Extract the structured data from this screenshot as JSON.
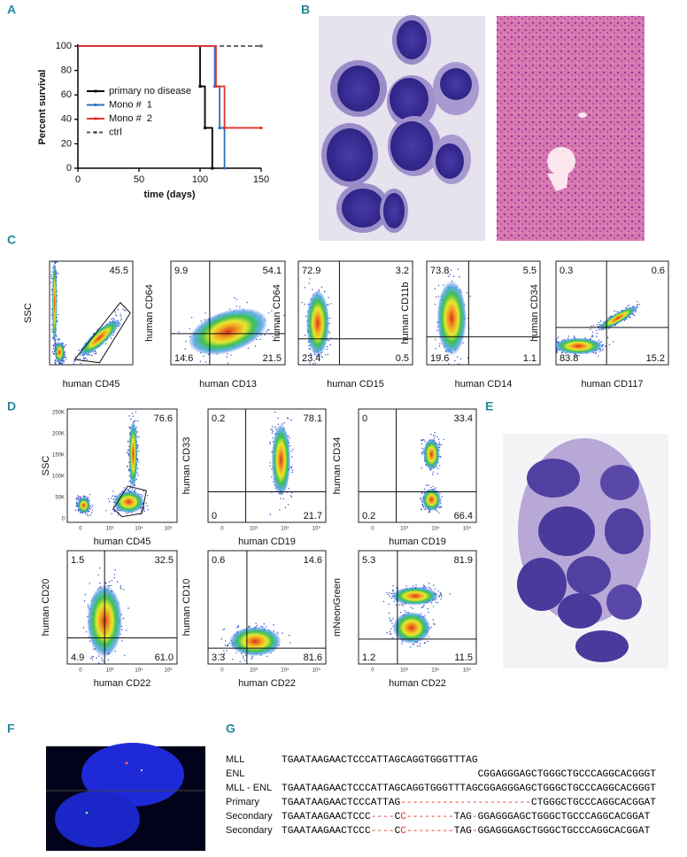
{
  "panel_labels": [
    "A",
    "B",
    "C",
    "D",
    "E",
    "F",
    "G"
  ],
  "chart_data": {
    "type": "line",
    "step": true,
    "y_label": "Percent survival",
    "x_label": "time (days)",
    "xlim": [
      0,
      150
    ],
    "xticks": [
      0,
      50,
      100,
      150
    ],
    "ylim": [
      0,
      100
    ],
    "yticks": [
      0,
      20,
      40,
      60,
      80,
      100
    ],
    "legend": "upper-left",
    "series": [
      {
        "name": "ctrl",
        "color": "#555555",
        "dash": true,
        "x": [
          0,
          150
        ],
        "values": [
          100,
          100
        ]
      },
      {
        "name": "primary no disease",
        "color": "#000000",
        "dash": false,
        "x": [
          0,
          100,
          104,
          110
        ],
        "values": [
          100,
          67,
          33,
          0
        ]
      },
      {
        "name": "Mono #  1",
        "color": "#2f6fc0",
        "dash": false,
        "x": [
          0,
          112,
          116,
          120
        ],
        "values": [
          100,
          67,
          33,
          0
        ]
      },
      {
        "name": "Mono #  2",
        "color": "#e8322a",
        "dash": false,
        "x": [
          0,
          113,
          120,
          150
        ],
        "values": [
          100,
          67,
          33,
          33
        ]
      }
    ]
  },
  "flow_c": {
    "plots": [
      {
        "y_label": "SSC",
        "x_label": "human CD45",
        "values": [
          "45.5"
        ]
      },
      {
        "y_label": "human CD64",
        "x_label": "human CD13",
        "values": [
          "9.9",
          "54.1",
          "14.6",
          "21.5"
        ]
      },
      {
        "y_label": "human CD64",
        "x_label": "human CD15",
        "values": [
          "72.9",
          "3.2",
          "23.4",
          "0.5"
        ]
      },
      {
        "y_label": "human CD11b",
        "x_label": "human CD14",
        "values": [
          "73.8",
          "5.5",
          "19.6",
          "1.1"
        ]
      },
      {
        "y_label": "human CD34",
        "x_label": "human CD117",
        "values": [
          "0.3",
          "0.6",
          "83.8",
          "15.2"
        ]
      }
    ]
  },
  "flow_d": {
    "ssc_ticks": [
      "250K",
      "200K",
      "150K",
      "100K",
      "50K",
      "0"
    ],
    "log_ticks": [
      "0",
      "10³",
      "10⁴",
      "10⁵"
    ],
    "plots": [
      {
        "y_label": "SSC",
        "x_label": "human CD45",
        "values": [
          "76.6"
        ]
      },
      {
        "y_label": "human CD33",
        "x_label": "human CD19",
        "values": [
          "0.2",
          "78.1",
          "0",
          "21.7"
        ]
      },
      {
        "y_label": "human CD34",
        "x_label": "human CD19",
        "values": [
          "0",
          "33.4",
          "0.2",
          "66.4"
        ]
      },
      {
        "y_label": "human CD20",
        "x_label": "human CD22",
        "values": [
          "1.5",
          "32.5",
          "4.9",
          "61.0"
        ]
      },
      {
        "y_label": "human CD10",
        "x_label": "human CD22",
        "values": [
          "0.6",
          "14.6",
          "3.3",
          "81.6"
        ]
      },
      {
        "y_label": "mNeonGreen",
        "x_label": "human CD22",
        "values": [
          "5.3",
          "81.9",
          "1.2",
          "11.5"
        ]
      }
    ]
  },
  "alignment": {
    "rows": [
      {
        "label": "MLL",
        "segments": [
          {
            "text": "TGAATAAGAACTCCCATTAGCAGGTGGGTTTAG",
            "color": "#000000"
          }
        ]
      },
      {
        "label": "ENL",
        "segments": [
          {
            "text": "CGGAGGGAGCTGGGCTGCCCAGGCACGGGT",
            "color": "#000000"
          }
        ]
      },
      {
        "label": "MLL - ENL",
        "segments": [
          {
            "text": "TGAATAAGAACTCCCATTAGCAGGTGGGTTTAGCGGAGGGAGCTGGGCTGCCCAGGCACGGGT",
            "color": "#000000"
          }
        ]
      },
      {
        "label": "Primary",
        "segments": [
          {
            "text": "TGAATAAGAACTCCCATTAG",
            "color": "#000000"
          },
          {
            "text": "----------------------",
            "color": "#e8322a"
          },
          {
            "text": "CTGGGCTGCCCAGGCACGGAT",
            "color": "#000000"
          }
        ]
      },
      {
        "label": "Secondary",
        "segments": [
          {
            "text": "TGAATAAGAACTCCC",
            "color": "#000000"
          },
          {
            "text": "----",
            "color": "#e8322a"
          },
          {
            "text": "C",
            "color": "#000000"
          },
          {
            "text": "C--------",
            "color": "#e8322a"
          },
          {
            "text": "TAG",
            "color": "#000000"
          },
          {
            "text": "-",
            "color": "#e8322a"
          },
          {
            "text": "GGAGGGAGCTGGGCTGCCCAGGCACGGAT",
            "color": "#000000"
          }
        ]
      },
      {
        "label": "Secondary",
        "segments": [
          {
            "text": "TGAATAAGAACTCCC",
            "color": "#000000"
          },
          {
            "text": "----",
            "color": "#e8322a"
          },
          {
            "text": "C",
            "color": "#000000"
          },
          {
            "text": "C--------",
            "color": "#e8322a"
          },
          {
            "text": "TAG",
            "color": "#000000"
          },
          {
            "text": "-",
            "color": "#e8322a"
          },
          {
            "text": "GGAGGGAGCTGGGCTGCCCAGGCACGGAT",
            "color": "#000000"
          }
        ]
      }
    ]
  }
}
